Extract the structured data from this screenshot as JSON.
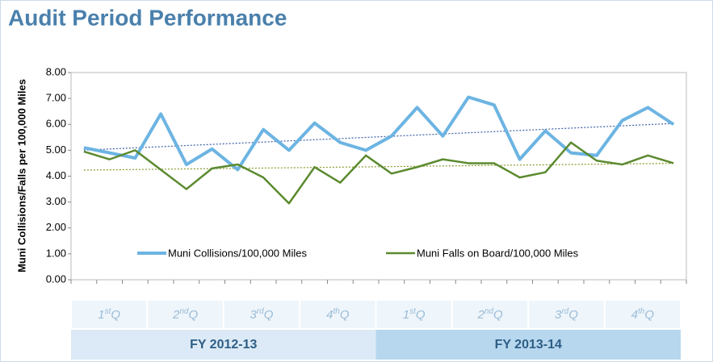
{
  "chart_data": {
    "type": "line",
    "title": "Audit Period Performance",
    "y_label": "Muni Collisions/Falls per 100,000 Miles",
    "series": [
      {
        "name": "Muni Collisions/100,000 Miles",
        "color": "#6cb4e2",
        "values": [
          5.1,
          4.9,
          4.7,
          6.4,
          4.45,
          5.05,
          4.25,
          5.8,
          5.0,
          6.05,
          5.3,
          5.0,
          5.55,
          6.65,
          5.55,
          7.05,
          6.75,
          4.65,
          5.75,
          4.9,
          4.8,
          6.15,
          6.65,
          6.0
        ]
      },
      {
        "name": "Muni Falls on Board/100,000 Miles",
        "color": "#5b8a2f",
        "values": [
          4.95,
          4.65,
          5.0,
          4.25,
          3.5,
          4.3,
          4.45,
          3.95,
          2.95,
          4.35,
          3.75,
          4.8,
          4.1,
          4.35,
          4.65,
          4.5,
          4.5,
          3.95,
          4.15,
          5.3,
          4.6,
          4.45,
          4.8,
          4.5
        ]
      }
    ],
    "trendline_colors": [
      "#3b5fa6",
      "#8a9a2a"
    ],
    "ylim": [
      0,
      8
    ],
    "yticks": [
      {
        "value": 0,
        "label": "0.00"
      },
      {
        "value": 1,
        "label": "1.00"
      },
      {
        "value": 2,
        "label": "2.00"
      },
      {
        "value": 3,
        "label": "3.00"
      },
      {
        "value": 4,
        "label": "4.00"
      },
      {
        "value": 5,
        "label": "5.00"
      },
      {
        "value": 6,
        "label": "6.00"
      },
      {
        "value": 7,
        "label": "7.00"
      },
      {
        "value": 8,
        "label": "8.00"
      }
    ],
    "quarters": [
      {
        "number": "1",
        "suffix": "st",
        "letter": "Q"
      },
      {
        "number": "2",
        "suffix": "nd",
        "letter": "Q"
      },
      {
        "number": "3",
        "suffix": "rd",
        "letter": "Q"
      },
      {
        "number": "4",
        "suffix": "th",
        "letter": "Q"
      },
      {
        "number": "1",
        "suffix": "st",
        "letter": "Q"
      },
      {
        "number": "2",
        "suffix": "nd",
        "letter": "Q"
      },
      {
        "number": "3",
        "suffix": "rd",
        "letter": "Q"
      },
      {
        "number": "4",
        "suffix": "th",
        "letter": "Q"
      }
    ],
    "fiscal_years": [
      "FY 2012-13",
      "FY 2013-14"
    ]
  }
}
